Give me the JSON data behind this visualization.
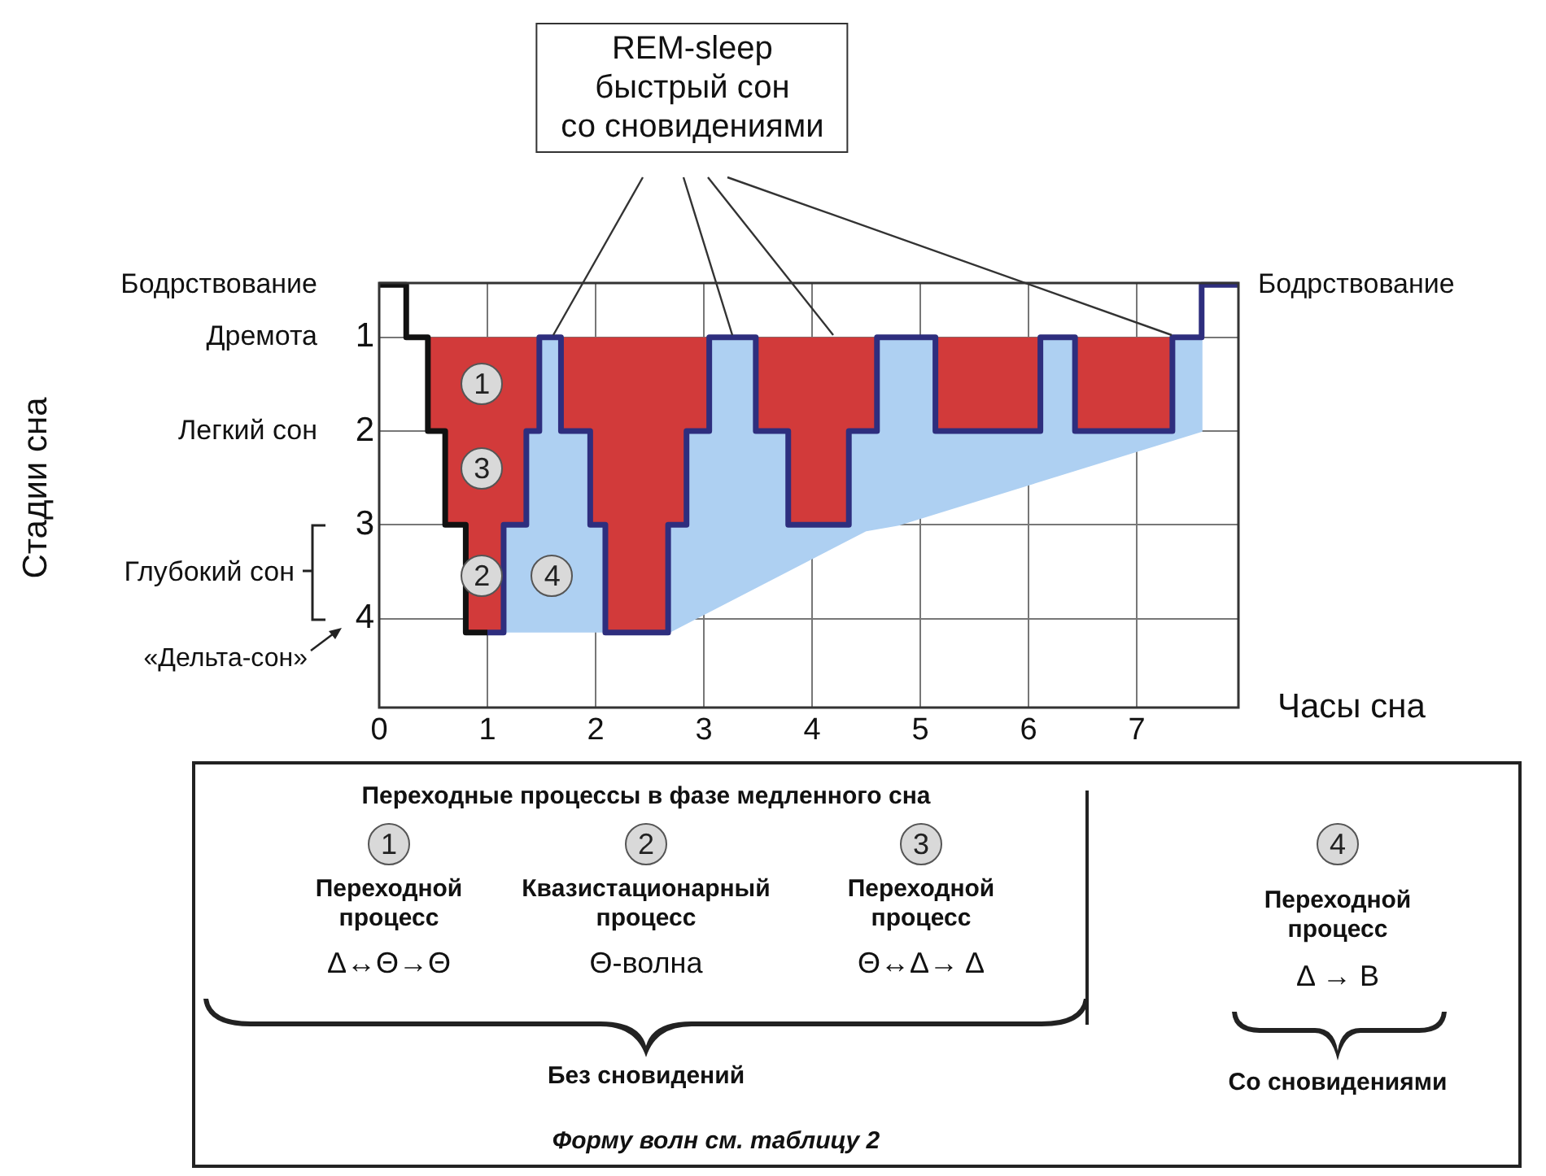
{
  "chart_data": {
    "type": "line",
    "xlabel": "Часы сна",
    "xlim": [
      0,
      7.94
    ],
    "ylim": [
      4.95,
      0.42
    ],
    "xticks": [
      0,
      1,
      2,
      3,
      4,
      5,
      6,
      7
    ],
    "yticks": [
      1,
      2,
      3,
      4
    ],
    "grid": true,
    "legend": false,
    "marker": "none",
    "line_style": "solid",
    "series": [
      {
        "type": "area",
        "color": "#d23a3a",
        "x": [
          0.45,
          0.45,
          0.61,
          0.61,
          0.8,
          0.8,
          1.15,
          1.15,
          1.36,
          1.36,
          1.48,
          1.48,
          1.68,
          1.68,
          1.95,
          1.95,
          2.09,
          2.09,
          2.67,
          2.67,
          2.84,
          2.84,
          3.05,
          3.05,
          3.48,
          3.48,
          3.78,
          3.78,
          4.34,
          4.34,
          4.6,
          4.6,
          5.14,
          5.14,
          6.11,
          6.11,
          6.43,
          6.43,
          7.33,
          7.33
        ],
        "values": [
          1,
          2,
          2,
          3,
          3,
          4.15,
          4.15,
          3,
          3,
          2,
          2,
          1,
          1,
          2,
          2,
          3,
          3,
          4.15,
          4.15,
          3,
          3,
          2,
          2,
          1,
          1,
          2,
          2,
          3,
          3,
          2,
          2,
          1,
          1,
          2,
          2,
          1,
          1,
          2,
          2,
          1
        ]
      },
      {
        "type": "area",
        "color": "#aed0f2",
        "x": [
          1.15,
          1.15,
          1.36,
          1.36,
          1.48,
          1.48,
          1.68,
          1.68,
          1.95,
          1.95,
          2.09,
          2.09,
          2.67,
          2.67,
          2.84,
          2.84,
          3.05,
          3.05,
          3.48,
          3.48,
          3.78,
          3.78,
          4.34,
          4.34,
          4.6,
          4.6,
          5.14,
          5.14,
          6.11,
          6.11,
          6.43,
          6.43,
          7.33,
          7.33,
          7.6,
          7.6,
          4.8,
          4.5,
          2.67
        ],
        "values": [
          4.15,
          3,
          3,
          2,
          2,
          1,
          1,
          2,
          2,
          3,
          3,
          4.15,
          4.15,
          3,
          3,
          2,
          2,
          1,
          1,
          2,
          2,
          3,
          3,
          2,
          2,
          1,
          1,
          2,
          2,
          1,
          1,
          2,
          2,
          1,
          1,
          2,
          3,
          3.06,
          4.15
        ]
      },
      {
        "type": "line",
        "color": "#111111",
        "x": [
          0,
          0.25,
          0.25,
          0.45,
          0.45,
          0.61,
          0.61,
          0.8,
          0.8,
          1.0
        ],
        "values": [
          0.44,
          0.44,
          1,
          1,
          2,
          2,
          3,
          3,
          4.15,
          4.15
        ]
      },
      {
        "type": "line",
        "color": "#2e2e7e",
        "x": [
          1.0,
          1.15,
          1.15,
          1.36,
          1.36,
          1.48,
          1.48,
          1.68,
          1.68,
          1.95,
          1.95,
          2.09,
          2.09,
          2.67,
          2.67,
          2.84,
          2.84,
          3.05,
          3.05,
          3.48,
          3.48,
          3.78,
          3.78,
          4.34,
          4.34,
          4.6,
          4.6,
          5.14,
          5.14,
          6.11,
          6.11,
          6.43,
          6.43,
          7.33,
          7.33,
          7.6,
          7.6,
          7.94
        ],
        "values": [
          4.15,
          4.15,
          3,
          3,
          2,
          2,
          1,
          1,
          2,
          2,
          3,
          3,
          4.15,
          4.15,
          3,
          3,
          2,
          2,
          1,
          1,
          2,
          2,
          3,
          3,
          2,
          2,
          1,
          1,
          2,
          2,
          1,
          1,
          2,
          2,
          1,
          1,
          0.44,
          0.44
        ]
      }
    ],
    "annotations": [
      "Переходные процессы в фазе медленного сна",
      "1",
      "2",
      "3",
      "4",
      "Переходной\nпроцесс",
      "Δ↔Θ→Θ",
      "Квазистационарный\nпроцесс",
      "Θ-волна",
      "Переходной\nпроцесс",
      "Θ↔Δ→ Δ",
      "Переходной\nпроцесс",
      "Δ → B",
      "Без сновидений",
      "Со сновидениями",
      "Форму волн см. таблицу 2",
      "Стадии сна",
      "Дремота",
      "Легкий сон",
      "Глубокий сон",
      "«Дельта-сон»",
      {
        "text": "REM-sleep\nбыстрый сон\nсо сновидениями",
        "x": 3.27,
        "y": 1
      },
      {
        "text": "Бодрствование",
        "x": 0,
        "y": 0.44
      },
      {
        "text": "Бодрствование",
        "x": 7.94,
        "y": 0.44
      },
      {
        "text": "1",
        "x": 0.95,
        "y": 1.5
      },
      {
        "text": "3",
        "x": 0.95,
        "y": 2.4
      },
      {
        "text": "2",
        "x": 0.95,
        "y": 3.55
      },
      {
        "text": "4",
        "x": 1.6,
        "y": 3.55
      }
    ]
  }
}
